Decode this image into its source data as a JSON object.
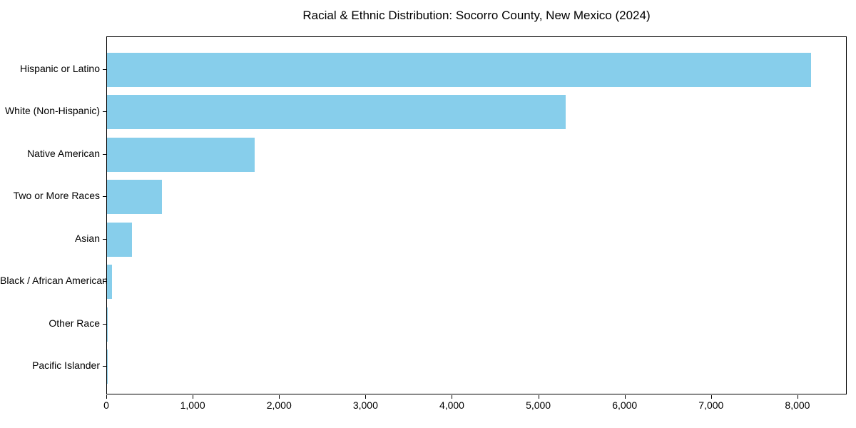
{
  "chart_data": {
    "type": "bar",
    "orientation": "horizontal",
    "title": "Racial & Ethnic Distribution: Socorro County, New Mexico (2024)",
    "categories": [
      "Hispanic or Latino",
      "White (Non-Hispanic)",
      "Native American",
      "Two or More Races",
      "Asian",
      "Black / African American",
      "Other Race",
      "Pacific Islander"
    ],
    "values": [
      8150,
      5310,
      1710,
      635,
      290,
      55,
      12,
      4
    ],
    "xlabel": "",
    "ylabel": "",
    "xlim": [
      0,
      8570
    ],
    "xticks": [
      0,
      1000,
      2000,
      3000,
      4000,
      5000,
      6000,
      7000,
      8000
    ],
    "xtick_labels": [
      "0",
      "1,000",
      "2,000",
      "3,000",
      "4,000",
      "5,000",
      "6,000",
      "7,000",
      "8,000"
    ],
    "bar_color": "#87CEEB",
    "spine_color": "#000000",
    "background_color": "#ffffff",
    "grid": false,
    "legend": null
  }
}
